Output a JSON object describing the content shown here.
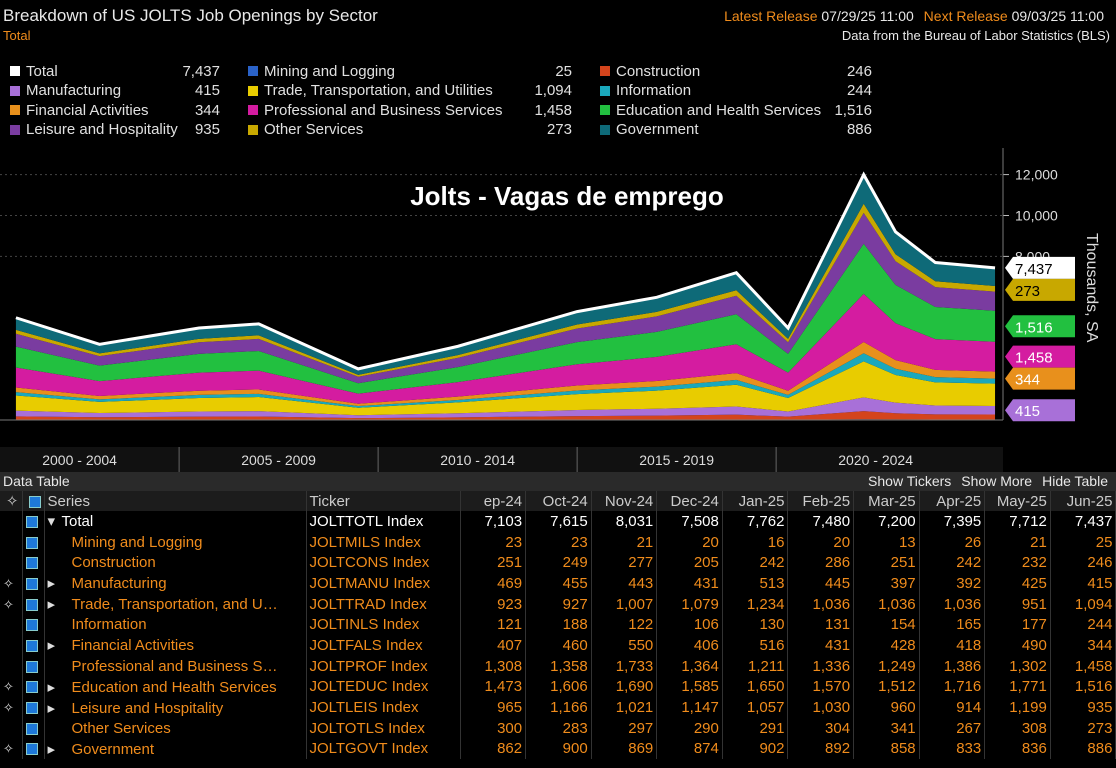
{
  "header": {
    "title": "Breakdown of US JOLTS Job Openings by Sector",
    "subtitle": "Total",
    "latest_label": "Latest Release",
    "latest": "07/29/25 11:00",
    "next_label": "Next Release",
    "next": "09/03/25 11:00",
    "source": "Data from the Bureau of Labor Statistics (BLS)"
  },
  "chart_data": {
    "type": "stacked-area",
    "title": "Jolts - Vagas de emprego",
    "y_label": "Thousands, SA",
    "x": [
      2000.9,
      2003,
      2005.5,
      2007,
      2009.5,
      2012,
      2015,
      2017,
      2019,
      2020.3,
      2022.2,
      2023,
      2024,
      2025.5
    ],
    "xlim": [
      2000.5,
      2025.7
    ],
    "xticks": [
      {
        "value": 2002.5,
        "label": "2000 - 2004"
      },
      {
        "value": 2007.5,
        "label": "2005 - 2009"
      },
      {
        "value": 2012.5,
        "label": "2010 - 2014"
      },
      {
        "value": 2017.5,
        "label": "2015 - 2019"
      },
      {
        "value": 2022.5,
        "label": "2020 - 2024"
      }
    ],
    "ylim": [
      0,
      13300
    ],
    "yticks": [
      {
        "value": 8000,
        "label": "8,000"
      },
      {
        "value": 10000,
        "label": "10,000"
      },
      {
        "value": 12000,
        "label": "12,000"
      }
    ],
    "grid": true,
    "series": [
      {
        "name": "Total",
        "kind": "line",
        "color": "#ffffff",
        "latest": "7,437",
        "values": [
          5000,
          3700,
          4500,
          4700,
          2500,
          3600,
          5300,
          6000,
          7200,
          4500,
          12000,
          9200,
          7700,
          7437
        ]
      },
      {
        "name": "Mining and Logging",
        "kind": "stack",
        "color": "#2a62c8",
        "latest": "25",
        "values": [
          15,
          11,
          14,
          14,
          8,
          11,
          16,
          18,
          22,
          14,
          36,
          28,
          23,
          25
        ]
      },
      {
        "name": "Construction",
        "kind": "stack",
        "color": "#d4441c",
        "latest": "246",
        "values": [
          165,
          122,
          149,
          155,
          83,
          119,
          175,
          198,
          238,
          149,
          396,
          304,
          254,
          246
        ]
      },
      {
        "name": "Manufacturing",
        "kind": "stack",
        "color": "#a870d8",
        "latest": "415",
        "values": [
          280,
          207,
          252,
          263,
          140,
          202,
          297,
          336,
          403,
          252,
          672,
          515,
          431,
          415
        ]
      },
      {
        "name": "Trade, Transportation, and Utilities",
        "kind": "stack",
        "color": "#e8cc00",
        "latest": "1,094",
        "values": [
          735,
          544,
          662,
          691,
          368,
          529,
          779,
          882,
          1058,
          662,
          1764,
          1352,
          1132,
          1094
        ]
      },
      {
        "name": "Information",
        "kind": "stack",
        "color": "#1aa8bc",
        "latest": "244",
        "values": [
          165,
          122,
          149,
          155,
          83,
          119,
          175,
          198,
          238,
          149,
          396,
          304,
          254,
          244
        ]
      },
      {
        "name": "Financial Activities",
        "kind": "stack",
        "color": "#e8901c",
        "latest": "344",
        "values": [
          230,
          170,
          207,
          216,
          115,
          166,
          244,
          276,
          331,
          207,
          552,
          423,
          354,
          344
        ]
      },
      {
        "name": "Professional and Business Services",
        "kind": "stack",
        "color": "#d41ca0",
        "latest": "1,458",
        "values": [
          980,
          725,
          882,
          921,
          490,
          706,
          1039,
          1176,
          1411,
          882,
          2352,
          1803,
          1509,
          1458
        ]
      },
      {
        "name": "Education and Health Services",
        "kind": "stack",
        "color": "#22c040",
        "latest": "1,516",
        "values": [
          1020,
          755,
          918,
          959,
          510,
          734,
          1081,
          1224,
          1469,
          918,
          2448,
          1877,
          1571,
          1516
        ]
      },
      {
        "name": "Leisure and Hospitality",
        "kind": "stack",
        "color": "#7a3ca0",
        "latest": "935",
        "values": [
          630,
          466,
          567,
          592,
          315,
          454,
          668,
          756,
          907,
          567,
          1512,
          1159,
          970,
          935
        ]
      },
      {
        "name": "Other Services",
        "kind": "stack",
        "color": "#c8a800",
        "latest": "273",
        "values": [
          185,
          137,
          167,
          174,
          93,
          133,
          196,
          222,
          266,
          167,
          444,
          340,
          285,
          273
        ]
      },
      {
        "name": "Government",
        "kind": "stack",
        "color": "#0e6a78",
        "latest": "886",
        "values": [
          595,
          440,
          536,
          559,
          298,
          428,
          631,
          714,
          857,
          536,
          1428,
          1095,
          916,
          886
        ]
      }
    ]
  },
  "table": {
    "title": "Data Table",
    "buttons": [
      "Show Tickers",
      "Show More",
      "Hide Table"
    ],
    "columns": [
      "Series",
      "Ticker",
      "ep-24",
      "Oct-24",
      "Nov-24",
      "Dec-24",
      "Jan-25",
      "Feb-25",
      "Mar-25",
      "Apr-25",
      "May-25",
      "Jun-25"
    ],
    "rows": [
      {
        "name": "Total",
        "ticker": "JOLTTOTL Index",
        "expandable": true,
        "expanded": true,
        "pinned": false,
        "values": [
          "7,103",
          "7,615",
          "8,031",
          "7,508",
          "7,762",
          "7,480",
          "7,200",
          "7,395",
          "7,712",
          "7,437"
        ]
      },
      {
        "name": "Mining and Logging",
        "ticker": "JOLTMILS Index",
        "expandable": false,
        "expanded": false,
        "pinned": false,
        "values": [
          "23",
          "23",
          "21",
          "20",
          "16",
          "20",
          "13",
          "26",
          "21",
          "25"
        ]
      },
      {
        "name": "Construction",
        "ticker": "JOLTCONS Index",
        "expandable": false,
        "expanded": false,
        "pinned": false,
        "values": [
          "251",
          "249",
          "277",
          "205",
          "242",
          "286",
          "251",
          "242",
          "232",
          "246"
        ]
      },
      {
        "name": "Manufacturing",
        "ticker": "JOLTMANU Index",
        "expandable": true,
        "expanded": false,
        "pinned": true,
        "values": [
          "469",
          "455",
          "443",
          "431",
          "513",
          "445",
          "397",
          "392",
          "425",
          "415"
        ]
      },
      {
        "name": "Trade, Transportation, and U…",
        "ticker": "JOLTTRAD Index",
        "expandable": true,
        "expanded": false,
        "pinned": true,
        "values": [
          "923",
          "927",
          "1,007",
          "1,079",
          "1,234",
          "1,036",
          "1,036",
          "1,036",
          "951",
          "1,094"
        ]
      },
      {
        "name": "Information",
        "ticker": "JOLTINLS Index",
        "expandable": false,
        "expanded": false,
        "pinned": false,
        "values": [
          "121",
          "188",
          "122",
          "106",
          "130",
          "131",
          "154",
          "165",
          "177",
          "244"
        ]
      },
      {
        "name": "Financial Activities",
        "ticker": "JOLTFALS Index",
        "expandable": true,
        "expanded": false,
        "pinned": false,
        "values": [
          "407",
          "460",
          "550",
          "406",
          "516",
          "431",
          "428",
          "418",
          "490",
          "344"
        ]
      },
      {
        "name": "Professional and Business S…",
        "ticker": "JOLTPROF Index",
        "expandable": false,
        "expanded": false,
        "pinned": false,
        "values": [
          "1,308",
          "1,358",
          "1,733",
          "1,364",
          "1,211",
          "1,336",
          "1,249",
          "1,386",
          "1,302",
          "1,458"
        ]
      },
      {
        "name": "Education and Health Services",
        "ticker": "JOLTEDUC Index",
        "expandable": true,
        "expanded": false,
        "pinned": true,
        "values": [
          "1,473",
          "1,606",
          "1,690",
          "1,585",
          "1,650",
          "1,570",
          "1,512",
          "1,716",
          "1,771",
          "1,516"
        ]
      },
      {
        "name": "Leisure and Hospitality",
        "ticker": "JOLTLEIS Index",
        "expandable": true,
        "expanded": false,
        "pinned": true,
        "values": [
          "965",
          "1,166",
          "1,021",
          "1,147",
          "1,057",
          "1,030",
          "960",
          "914",
          "1,199",
          "935"
        ]
      },
      {
        "name": "Other Services",
        "ticker": "JOLTOTLS Index",
        "expandable": false,
        "expanded": false,
        "pinned": false,
        "values": [
          "300",
          "283",
          "297",
          "290",
          "291",
          "304",
          "341",
          "267",
          "308",
          "273"
        ]
      },
      {
        "name": "Government",
        "ticker": "JOLTGOVT Index",
        "expandable": true,
        "expanded": false,
        "pinned": true,
        "values": [
          "862",
          "900",
          "869",
          "874",
          "902",
          "892",
          "858",
          "833",
          "836",
          "886"
        ]
      }
    ]
  }
}
